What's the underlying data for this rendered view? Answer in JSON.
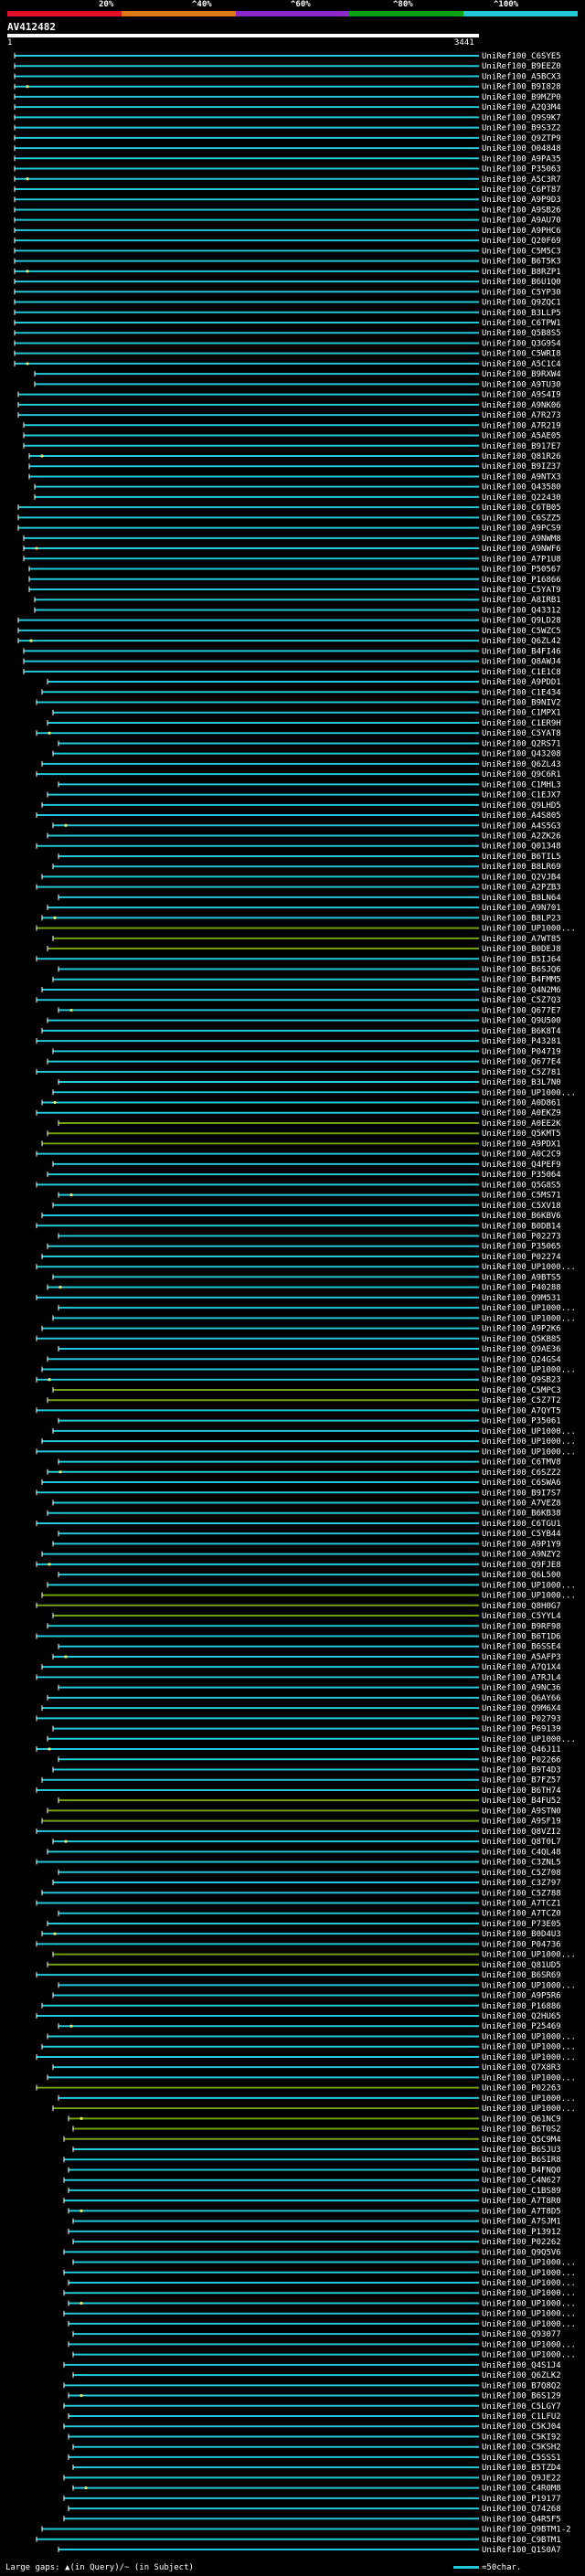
{
  "title": "AV412482",
  "scale_labels": [
    "20%",
    "^40%",
    "^60%",
    "^80%",
    "^100%"
  ],
  "scale_colors": [
    "#e0102a",
    "#e07818",
    "#8a28c8",
    "#0aa010",
    "#20c8d8"
  ],
  "axis": {
    "start": "1",
    "end": "3441"
  },
  "hit_color": "#20c8d8",
  "highlight_color": "#6fa010",
  "gap_color": "#e8f070",
  "footer": {
    "legend_left": "Large gaps: ▲(in Query)/~ (in Subject)",
    "legend_right": "=50char."
  },
  "hits": [
    "UniRef100_C6SYE5",
    "UniRef100_B9EEZ0",
    "UniRef100_A5BCX3",
    "UniRef100_B9I828",
    "UniRef100_B9MZP0",
    "UniRef100_A2Q3M4",
    "UniRef100_Q9S9K7",
    "UniRef100_B9S3Z2",
    "UniRef100_Q9ZTP9",
    "UniRef100_O04848",
    "UniRef100_A9PA35",
    "UniRef100_P35063",
    "UniRef100_A5C3R7",
    "UniRef100_C6PT87",
    "UniRef100_A9P9D3",
    "UniRef100_A9SB26",
    "UniRef100_A9AU70",
    "UniRef100_A9PHC6",
    "UniRef100_Q20F69",
    "UniRef100_C5M5C3",
    "UniRef100_B6T5K3",
    "UniRef100_B8RZP1",
    "UniRef100_B6U1Q0",
    "UniRef100_C5YP30",
    "UniRef100_Q9ZQC1",
    "UniRef100_B3LLP5",
    "UniRef100_C6TPW1",
    "UniRef100_Q5B8S5",
    "UniRef100_Q3G9S4",
    "UniRef100_C5WRI8",
    "UniRef100_A5C1C4",
    "UniRef100_B9RXW4",
    "UniRef100_A9TU30",
    "UniRef100_A9S4I9",
    "UniRef100_A9NK06",
    "UniRef100_A7R273",
    "UniRef100_A7R219",
    "UniRef100_A5AE05",
    "UniRef100_B917E7",
    "UniRef100_Q81R26",
    "UniRef100_B9IZ37",
    "UniRef100_A9NTX3",
    "UniRef100_Q43580",
    "UniRef100_Q22430",
    "UniRef100_C6TB05",
    "UniRef100_C6SZZ5",
    "UniRef100_A9PCS9",
    "UniRef100_A9NWM8",
    "UniRef100_A9NWF6",
    "UniRef100_A7P1U8",
    "UniRef100_P50567",
    "UniRef100_P16866",
    "UniRef100_C5YAT9",
    "UniRef100_A8IRB1",
    "UniRef100_Q43312",
    "UniRef100_Q9LD28",
    "UniRef100_C5WZC5",
    "UniRef100_Q6ZL42",
    "UniRef100_B4FI46",
    "UniRef100_Q8AWJ4",
    "UniRef100_C1E1C8",
    "UniRef100_A9PDD1",
    "UniRef100_C1E434",
    "UniRef100_B9NIV2",
    "UniRef100_C1MPX1",
    "UniRef100_C1ER9H",
    "UniRef100_C5YAT8",
    "UniRef100_Q2RS71",
    "UniRef100_Q43208",
    "UniRef100_Q6ZL43",
    "UniRef100_Q9C6R1",
    "UniRef100_C1MHL3",
    "UniRef100_C1EJX7",
    "UniRef100_Q9LHD5",
    "UniRef100_A4S805",
    "UniRef100_A4S5G3",
    "UniRef100_A2ZK26",
    "UniRef100_Q01348",
    "UniRef100_B6TIL5",
    "UniRef100_B8LR69",
    "UniRef100_Q2VJB4",
    "UniRef100_A2PZB3",
    "UniRef100_B8LN64",
    "UniRef100_A9N701",
    "UniRef100_B8LP23",
    "UniRef100_UP1000...",
    "UniRef100_A7WT85",
    "UniRef100_B0DEJ8",
    "UniRef100_B5IJ64",
    "UniRef100_B6SJQ6",
    "UniRef100_B4FMM5",
    "UniRef100_Q4N2M6",
    "UniRef100_C5Z7Q3",
    "UniRef100_Q677E7",
    "UniRef100_Q9U500",
    "UniRef100_B6K8T4",
    "UniRef100_P43281",
    "UniRef100_P04719",
    "UniRef100_Q677E4",
    "UniRef100_C5Z781",
    "UniRef100_B3L7N0",
    "UniRef100_UP1000...",
    "UniRef100_A0D861",
    "UniRef100_A0EKZ9",
    "UniRef100_A0EE2K",
    "UniRef100_Q5KMT5",
    "UniRef100_A9PDX1",
    "UniRef100_A0C2C9",
    "UniRef100_Q4PEF9",
    "UniRef100_P35064",
    "UniRef100_Q5G8S5",
    "UniRef100_C5MS71",
    "UniRef100_C5XV18",
    "UniRef100_B6KBV6",
    "UniRef100_B0DB14",
    "UniRef100_P02273",
    "UniRef100_P35065",
    "UniRef100_P02274",
    "UniRef100_UP1000...",
    "UniRef100_A9BTS5",
    "UniRef100_P40288",
    "UniRef100_Q9M531",
    "UniRef100_UP1000...",
    "UniRef100_UP1000...",
    "UniRef100_A9P2K6",
    "UniRef100_Q5KB85",
    "UniRef100_Q9AE36",
    "UniRef100_Q24GS4",
    "UniRef100_UP1000...",
    "UniRef100_Q9SB23",
    "UniRef100_C5MPC3",
    "UniRef100_C5Z7T2",
    "UniRef100_A7QYT5",
    "UniRef100_P35061",
    "UniRef100_UP1000...",
    "UniRef100_UP1000...",
    "UniRef100_UP1000...",
    "UniRef100_C6TMV8",
    "UniRef100_C6SZZ2",
    "UniRef100_C6SWA6",
    "UniRef100_B9I7S7",
    "UniRef100_A7VEZ8",
    "UniRef100_B6KB38",
    "UniRef100_C6TGU1",
    "UniRef100_C5YB44",
    "UniRef100_A9P1Y9",
    "UniRef100_A9NZY2",
    "UniRef100_Q9FJE8",
    "UniRef100_Q6L500",
    "UniRef100_UP1000...",
    "UniRef100_UP1000...",
    "UniRef100_Q8H0G7",
    "UniRef100_C5YYL4",
    "UniRef100_B9RF98",
    "UniRef100_B6T1D6",
    "UniRef100_B6SSE4",
    "UniRef100_A5AFP3",
    "UniRef100_A7Q1X4",
    "UniRef100_A7RJL4",
    "UniRef100_A9NC36",
    "UniRef100_Q6AY66",
    "UniRef100_Q9M6X4",
    "UniRef100_P02793",
    "UniRef100_P69139",
    "UniRef100_UP1000...",
    "UniRef100_Q46J11",
    "UniRef100_P02266",
    "UniRef100_B9T4D3",
    "UniRef100_B7FZ57",
    "UniRef100_B6TH74",
    "UniRef100_B4FU52",
    "UniRef100_A9STN0",
    "UniRef100_A9SF19",
    "UniRef100_Q8VZI2",
    "UniRef100_Q8T0L7",
    "UniRef100_C4QL48",
    "UniRef100_C3ZNL5",
    "UniRef100_C5Z708",
    "UniRef100_C3Z797",
    "UniRef100_C5Z788",
    "UniRef100_A7TCZ1",
    "UniRef100_A7TCZ0",
    "UniRef100_P73E05",
    "UniRef100_B0D4U3",
    "UniRef100_P04736",
    "UniRef100_UP1000...",
    "UniRef100_Q81UD5",
    "UniRef100_B6SR69",
    "UniRef100_UP1000...",
    "UniRef100_A9P5R6",
    "UniRef100_P16886",
    "UniRef100_Q2HU65",
    "UniRef100_P25469",
    "UniRef100_UP1000...",
    "UniRef100_UP1000...",
    "UniRef100_UP1000...",
    "UniRef100_Q7X8R3",
    "UniRef100_UP1000...",
    "UniRef100_P02263",
    "UniRef100_UP1000...",
    "UniRef100_UP1000...",
    "UniRef100_Q61NC9",
    "UniRef100_B6T0S2",
    "UniRef100_Q5C9M4",
    "UniRef100_B6SJU3",
    "UniRef100_B6SIR8",
    "UniRef100_B4FNQ0",
    "UniRef100_C4N627",
    "UniRef100_C1BS89",
    "UniRef100_A7T8R0",
    "UniRef100_A7T8D5",
    "UniRef100_A7SJM1",
    "UniRef100_P13912",
    "UniRef100_P02262",
    "UniRef100_Q9Q5V6",
    "UniRef100_UP1000...",
    "UniRef100_UP1000...",
    "UniRef100_UP1000...",
    "UniRef100_UP1000...",
    "UniRef100_UP1000...",
    "UniRef100_UP1000...",
    "UniRef100_UP1000...",
    "UniRef100_Q93077",
    "UniRef100_UP1000...",
    "UniRef100_UP1000...",
    "UniRef100_Q4S1J4",
    "UniRef100_Q6ZLK2",
    "UniRef100_B7Q8Q2",
    "UniRef100_B6S129",
    "UniRef100_C5LGY7",
    "UniRef100_C1LFU2",
    "UniRef100_C5KJ04",
    "UniRef100_C5KI92",
    "UniRef100_C5KSH2",
    "UniRef100_C5SSS1",
    "UniRef100_B5TZD4",
    "UniRef100_Q9JE22",
    "UniRef100_C4R0M8",
    "UniRef100_P19177",
    "UniRef100_Q74268",
    "UniRef100_Q4R5F5",
    "UniRef100_Q9BTM1-2",
    "UniRef100_C9BTM1",
    "UniRef100_Q1S0A7"
  ]
}
